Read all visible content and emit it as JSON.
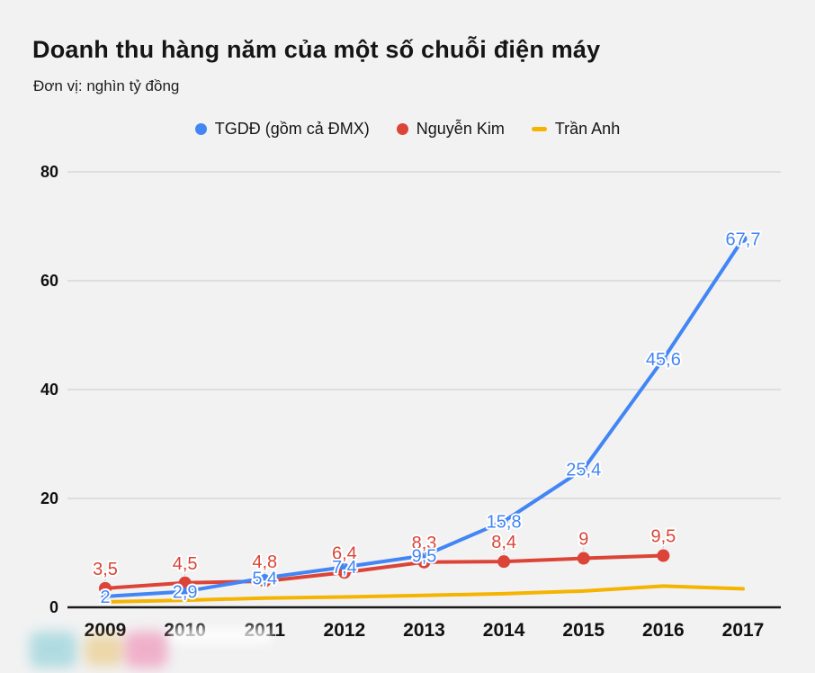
{
  "chart_data": {
    "type": "line",
    "title": "Doanh thu hàng năm của một số chuỗi điện máy",
    "subtitle": "Đơn vị: nghìn tỷ đồng",
    "x": [
      "2009",
      "2010",
      "2011",
      "2012",
      "2013",
      "2014",
      "2015",
      "2016",
      "2017"
    ],
    "ylim": [
      0,
      80
    ],
    "yticks": [
      0,
      20,
      40,
      60,
      80
    ],
    "grid": true,
    "legend_position": "top",
    "background": "#f2f2f3",
    "axis_color": "#1a1a1a",
    "gridline_color": "#c9c9c9",
    "series": [
      {
        "id": "tgdd",
        "name": "TGDĐ (gồm cả ĐMX)",
        "color": "#4285F4",
        "marker": "circle",
        "marker_size": 4.5,
        "label_style": "on-point",
        "values": [
          2,
          2.9,
          5.4,
          7.4,
          9.5,
          15.8,
          25.4,
          45.6,
          67.7
        ],
        "labels": [
          "2",
          "2,9",
          "5,4",
          "7,4",
          "9,5",
          "15,8",
          "25,4",
          "45,6",
          "67,7"
        ]
      },
      {
        "id": "nguyen-kim",
        "name": "Nguyễn Kim",
        "color": "#DB4437",
        "marker": "circle",
        "marker_size": 7,
        "label_style": "above-point",
        "values": [
          3.5,
          4.5,
          4.8,
          6.4,
          8.3,
          8.4,
          9,
          9.5
        ],
        "labels": [
          "3,5",
          "4,5",
          "4,8",
          "6,4",
          "8,3",
          "8,4",
          "9",
          "9,5"
        ]
      },
      {
        "id": "tran-anh",
        "name": "Trần Anh",
        "color": "#F4B400",
        "marker": "none",
        "marker_size": 0,
        "label_style": "none",
        "values": [
          1.0,
          1.3,
          1.7,
          1.9,
          2.2,
          2.5,
          3.0,
          3.9,
          3.4
        ],
        "labels": []
      }
    ]
  },
  "watermark": {
    "name": "blurred-logo",
    "colors": {
      "teal": "#6fc6cf",
      "yellow": "#e6bc5e",
      "pink": "#ee6fa0",
      "white": "#ffffff"
    }
  }
}
